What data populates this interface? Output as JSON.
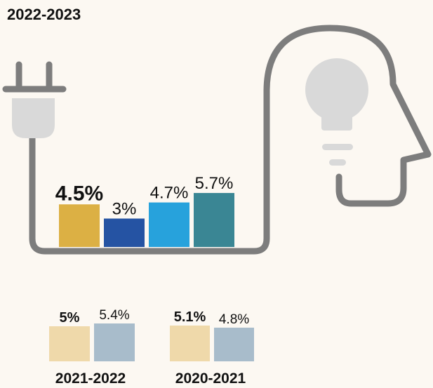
{
  "chart_data": [
    {
      "type": "bar",
      "title": "2022-2023",
      "values": [
        4.5,
        3,
        4.7,
        5.7
      ],
      "value_labels": [
        "4.5%",
        "3%",
        "4.7%",
        "5.7%"
      ],
      "colors": [
        "#dcb044",
        "#2553a3",
        "#27a2dc",
        "#3a8694"
      ]
    },
    {
      "type": "bar",
      "title": "2021-2022",
      "values": [
        5,
        5.4
      ],
      "value_labels": [
        "5%",
        "5.4%"
      ],
      "colors": [
        "#efd9aa",
        "#a8bccb"
      ]
    },
    {
      "type": "bar",
      "title": "2020-2021",
      "values": [
        5.1,
        4.8
      ],
      "value_labels": [
        "5.1%",
        "4.8%"
      ],
      "colors": [
        "#efd9aa",
        "#a8bccb"
      ]
    }
  ]
}
